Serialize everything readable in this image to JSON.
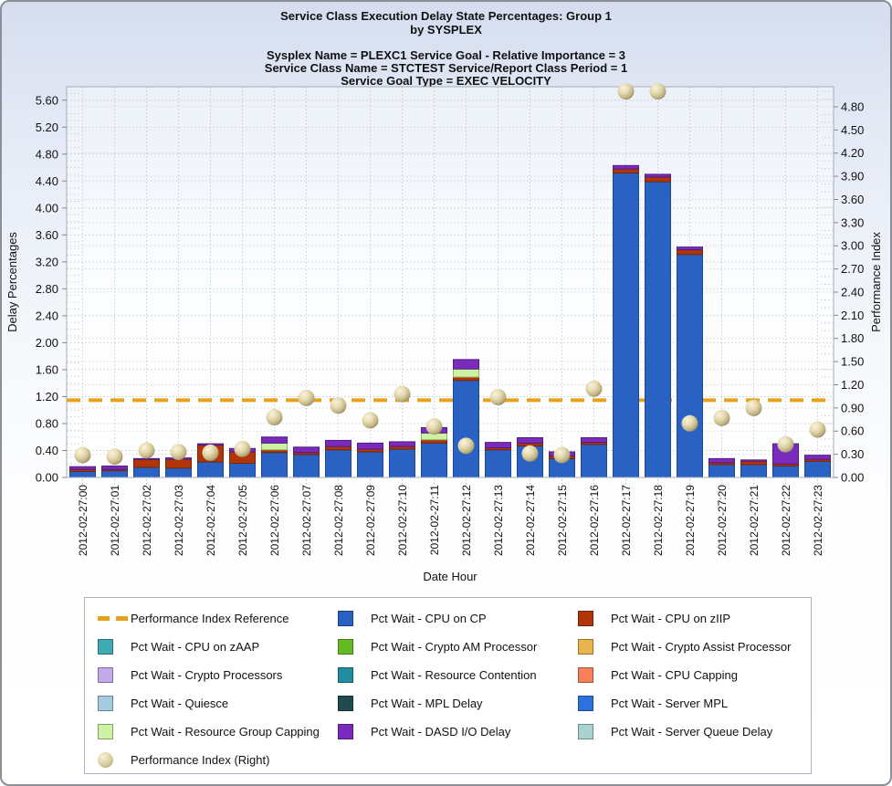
{
  "title": {
    "line1": "Service Class Execution Delay State Percentages: Group 1",
    "line2": "by SYSPLEX"
  },
  "subtitle": {
    "line1": "Sysplex Name = PLEXC1  Service Goal - Relative Importance = 3",
    "line2": "Service Class Name = STCTEST  Service/Report Class Period = 1",
    "line3": "Service Goal Type = EXEC VELOCITY"
  },
  "chart_data": {
    "type": "bar",
    "stacked": true,
    "categories": [
      "2012-02-27:00",
      "2012-02-27:01",
      "2012-02-27:02",
      "2012-02-27:03",
      "2012-02-27:04",
      "2012-02-27:05",
      "2012-02-27:06",
      "2012-02-27:07",
      "2012-02-27:08",
      "2012-02-27:09",
      "2012-02-27:10",
      "2012-02-27:11",
      "2012-02-27:12",
      "2012-02-27:13",
      "2012-02-27:14",
      "2012-02-27:15",
      "2012-02-27:16",
      "2012-02-27:17",
      "2012-02-27:18",
      "2012-02-27:19",
      "2012-02-27:20",
      "2012-02-27:21",
      "2012-02-27:22",
      "2012-02-27:23"
    ],
    "xlabel": "Date Hour",
    "left_axis": {
      "label": "Delay Percentages",
      "ticks": [
        "0.00",
        "0.40",
        "0.80",
        "1.20",
        "1.60",
        "2.00",
        "2.40",
        "2.80",
        "3.20",
        "3.60",
        "4.00",
        "4.40",
        "4.80",
        "5.20",
        "5.60"
      ],
      "tick_step": 0.4,
      "max": 5.8
    },
    "right_axis": {
      "label": "Performance Index",
      "ticks": [
        "0.00",
        "0.30",
        "0.60",
        "0.90",
        "1.20",
        "1.50",
        "1.80",
        "2.10",
        "2.40",
        "2.70",
        "3.00",
        "3.30",
        "3.60",
        "3.90",
        "4.20",
        "4.50",
        "4.80"
      ],
      "tick_step": 0.3,
      "max": 5.06
    },
    "reference_line": {
      "label": "Performance Index Reference",
      "value_right_axis": 1.0,
      "color": "#E8A11B"
    },
    "series": [
      {
        "name": "Pct Wait - CPU on CP",
        "color": "#2A62C3",
        "border": "#1A4796",
        "values": [
          0.09,
          0.1,
          0.15,
          0.14,
          0.23,
          0.21,
          0.37,
          0.34,
          0.41,
          0.38,
          0.42,
          0.51,
          1.44,
          0.41,
          0.47,
          0.28,
          0.49,
          4.52,
          4.39,
          3.31,
          0.19,
          0.19,
          0.17,
          0.24
        ]
      },
      {
        "name": "Pct Wait - CPU on zIIP",
        "color": "#B23508",
        "border": "#7A2506",
        "values": [
          0.03,
          0.02,
          0.12,
          0.13,
          0.25,
          0.17,
          0.04,
          0.03,
          0.05,
          0.04,
          0.04,
          0.05,
          0.05,
          0.03,
          0.04,
          0.04,
          0.03,
          0.06,
          0.07,
          0.07,
          0.03,
          0.05,
          0.03,
          0.03
        ]
      },
      {
        "name": "Pct Wait - Resource Group Capping",
        "color": "#CDF2A4",
        "border": "#8FB863",
        "values": [
          0,
          0,
          0,
          0,
          0,
          0,
          0.1,
          0,
          0,
          0,
          0,
          0.1,
          0.12,
          0,
          0,
          0,
          0,
          0,
          0,
          0,
          0,
          0,
          0,
          0
        ]
      },
      {
        "name": "Pct Wait - DASD I/O Delay",
        "color": "#7A2ABD",
        "border": "#511C80",
        "values": [
          0.04,
          0.05,
          0.01,
          0.02,
          0.02,
          0.05,
          0.09,
          0.08,
          0.09,
          0.09,
          0.07,
          0.08,
          0.14,
          0.08,
          0.08,
          0.06,
          0.07,
          0.05,
          0.04,
          0.04,
          0.06,
          0.02,
          0.3,
          0.06
        ]
      }
    ],
    "performance_index": {
      "name": "Performance Index (Right)",
      "axis": "right",
      "marker_color": "#D9CD9F",
      "values": [
        0.29,
        0.27,
        0.35,
        0.33,
        0.32,
        0.37,
        0.78,
        1.03,
        0.93,
        0.74,
        1.08,
        0.66,
        0.41,
        1.04,
        0.31,
        0.29,
        1.15,
        5.0,
        5.0,
        0.7,
        0.77,
        0.9,
        0.43,
        0.62
      ]
    }
  },
  "legend": {
    "items": [
      {
        "label": "Performance Index Reference",
        "color": "#E8A11B",
        "type": "dash-line"
      },
      {
        "label": "Pct Wait - CPU on CP",
        "color": "#2A62C3",
        "type": "box"
      },
      {
        "label": "Pct Wait - CPU on zIIP",
        "color": "#B23508",
        "type": "box"
      },
      {
        "label": "Pct Wait - CPU on zAAP",
        "color": "#3FAAB4",
        "type": "box"
      },
      {
        "label": "Pct Wait - Crypto AM Processor",
        "color": "#63BA22",
        "type": "box"
      },
      {
        "label": "Pct Wait - Crypto Assist Processor",
        "color": "#E9B44C",
        "type": "box"
      },
      {
        "label": "Pct Wait - Crypto Processors",
        "color": "#C4AAE8",
        "type": "box"
      },
      {
        "label": "Pct Wait - Resource Contention",
        "color": "#1F8FA0",
        "type": "box"
      },
      {
        "label": "Pct Wait - CPU Capping",
        "color": "#F87F5B",
        "type": "box"
      },
      {
        "label": "Pct Wait - Quiesce",
        "color": "#A5CBDF",
        "type": "box"
      },
      {
        "label": "Pct Wait - MPL Delay",
        "color": "#1E4A50",
        "type": "box"
      },
      {
        "label": "Pct Wait - Server MPL",
        "color": "#2E71DC",
        "type": "box"
      },
      {
        "label": "Pct Wait - Resource Group Capping",
        "color": "#CDF2A4",
        "type": "box"
      },
      {
        "label": "Pct Wait - DASD I/O Delay",
        "color": "#7A2ABD",
        "type": "box"
      },
      {
        "label": "Pct Wait - Server Queue Delay",
        "color": "#A9D3D3",
        "type": "box"
      },
      {
        "label": "Performance Index (Right)",
        "color": "#D9CD9F",
        "type": "sphere"
      }
    ]
  }
}
